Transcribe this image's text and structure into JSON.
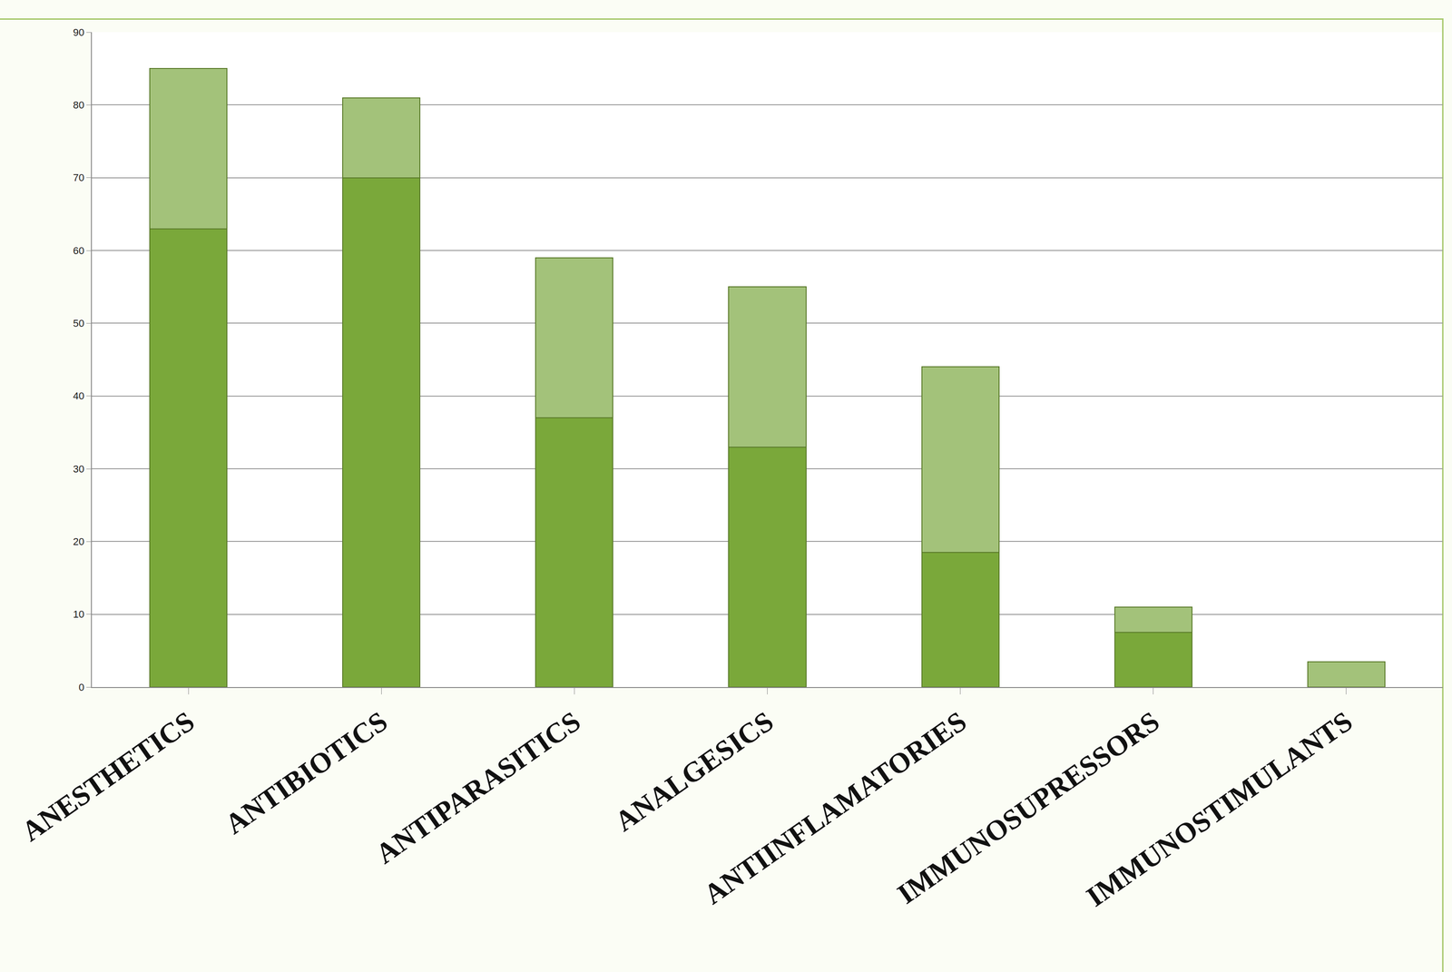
{
  "chart_data": {
    "type": "bar",
    "stacked": true,
    "categories": [
      "Anesthetics",
      "Antibiotics",
      "Antiparasitics",
      "Analgesics",
      "Antiinflamatories",
      "Immunosupressors",
      "Immunostimulants"
    ],
    "series": [
      {
        "color": "#7aa83a",
        "values": [
          63,
          70,
          37,
          33,
          18.5,
          7.5,
          0
        ]
      },
      {
        "color": "#a3c27a",
        "values": [
          22,
          11,
          22,
          22,
          25.5,
          3.5,
          3.5
        ]
      }
    ],
    "ylim": [
      0,
      90
    ],
    "yticks": [
      0,
      10,
      20,
      30,
      40,
      50,
      60,
      70,
      80,
      90
    ],
    "grid": true
  }
}
